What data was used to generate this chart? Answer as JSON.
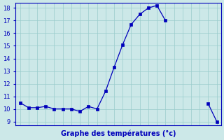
{
  "x_indices": [
    0,
    1,
    2,
    3,
    4,
    5,
    6,
    7,
    8,
    9,
    10,
    11,
    12,
    13,
    14,
    15,
    16,
    17,
    22,
    23
  ],
  "y": [
    10.5,
    10.1,
    10.1,
    10.2,
    10.0,
    10.0,
    10.0,
    9.8,
    10.2,
    10.0,
    11.4,
    13.3,
    15.1,
    16.7,
    17.5,
    18.0,
    18.2,
    17.0,
    10.4,
    9.0
  ],
  "line_color": "#0000bb",
  "marker_color": "#0000bb",
  "bg_color": "#cce8e8",
  "grid_color": "#99cccc",
  "axis_label_color": "#0000bb",
  "tick_color": "#0000bb",
  "xlabel": "Graphe des températures (°c)",
  "ylim_min": 8.7,
  "ylim_max": 18.4,
  "yticks": [
    9,
    10,
    11,
    12,
    13,
    14,
    15,
    16,
    17,
    18
  ],
  "xlim_min": -0.5,
  "xlim_max": 23.5,
  "xtick_show": [
    0,
    1,
    2,
    3,
    4,
    5,
    6,
    7,
    8,
    9,
    10,
    11,
    12,
    13,
    14,
    15,
    16,
    17,
    22,
    23
  ],
  "xlabel_fontsize": 7,
  "ytick_fontsize": 6,
  "xtick_fontsize": 5.5
}
